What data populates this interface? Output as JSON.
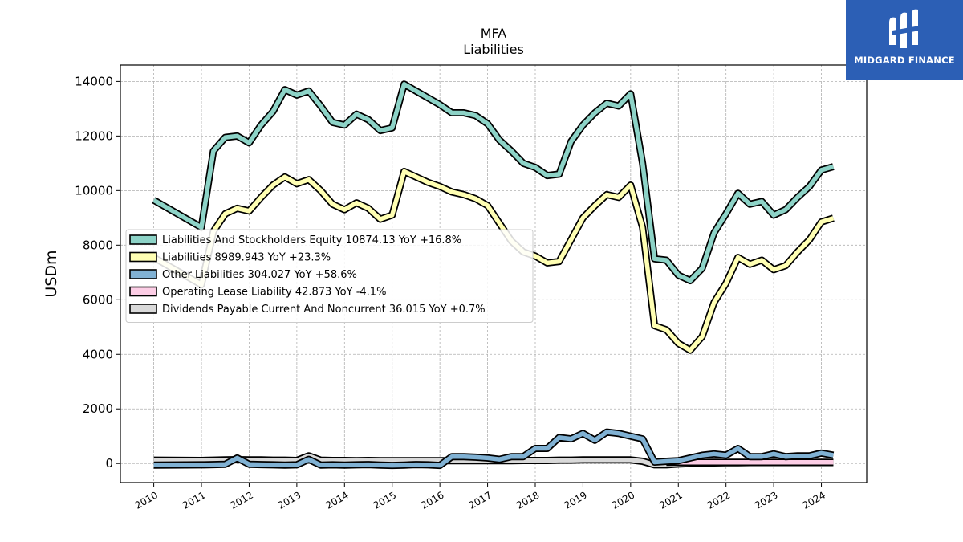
{
  "brand": {
    "name": "MIDGARD FINANCE",
    "logo_icon": "midgard-logo-icon",
    "color": "#2c5fb5"
  },
  "chart_data": {
    "type": "line",
    "title": "MFA",
    "subtitle": "Liabilities",
    "ylabel": "USDm",
    "xlabel": "",
    "ylim": [
      -700,
      14600
    ],
    "xlim": [
      2009.3,
      2024.95
    ],
    "yticks": [
      0,
      2000,
      4000,
      6000,
      8000,
      10000,
      12000,
      14000
    ],
    "xticks": [
      2010,
      2011,
      2012,
      2013,
      2014,
      2015,
      2016,
      2017,
      2018,
      2019,
      2020,
      2021,
      2022,
      2023,
      2024
    ],
    "grid": true,
    "legend_position": "center-left",
    "x": [
      2010.0,
      2011.0,
      2011.25,
      2011.5,
      2011.75,
      2012.0,
      2012.25,
      2012.5,
      2012.75,
      2013.0,
      2013.25,
      2013.5,
      2013.75,
      2014.0,
      2014.25,
      2014.5,
      2014.75,
      2015.0,
      2015.25,
      2015.5,
      2015.75,
      2016.0,
      2016.25,
      2016.5,
      2016.75,
      2017.0,
      2017.25,
      2017.5,
      2017.75,
      2018.0,
      2018.25,
      2018.5,
      2018.75,
      2019.0,
      2019.25,
      2019.5,
      2019.75,
      2020.0,
      2020.25,
      2020.5,
      2020.75,
      2021.0,
      2021.25,
      2021.5,
      2021.75,
      2022.0,
      2022.25,
      2022.5,
      2022.75,
      2023.0,
      2023.25,
      2023.5,
      2023.75,
      2024.0,
      2024.25
    ],
    "series": [
      {
        "name": "Liabilities And Stockholders Equity",
        "value_label": "10874.13",
        "yoy_label": "YoY +16.8%",
        "color": "#8dd3c7",
        "values": [
          9650,
          8650,
          11450,
          11950,
          12000,
          11750,
          12400,
          12900,
          13700,
          13500,
          13650,
          13100,
          12500,
          12400,
          12800,
          12600,
          12200,
          12300,
          13900,
          13650,
          13400,
          13150,
          12850,
          12850,
          12750,
          12450,
          11850,
          11450,
          11000,
          10850,
          10550,
          10600,
          11800,
          12400,
          12850,
          13200,
          13100,
          13550,
          11000,
          7500,
          7450,
          6900,
          6700,
          7150,
          8450,
          9150,
          9900,
          9500,
          9600,
          9100,
          9300,
          9750,
          10150,
          10750,
          10874
        ]
      },
      {
        "name": "Liabilities",
        "value_label": "8989.943",
        "yoy_label": "YoY +23.3%",
        "color": "#ffffb3",
        "values": [
          7550,
          6550,
          8500,
          9150,
          9350,
          9250,
          9750,
          10200,
          10500,
          10250,
          10400,
          10000,
          9500,
          9300,
          9550,
          9350,
          8950,
          9100,
          10700,
          10500,
          10300,
          10150,
          9950,
          9850,
          9700,
          9450,
          8800,
          8150,
          7750,
          7600,
          7350,
          7400,
          8200,
          9000,
          9450,
          9850,
          9750,
          10200,
          8650,
          5050,
          4900,
          4400,
          4150,
          4650,
          5900,
          6600,
          7550,
          7300,
          7450,
          7100,
          7250,
          7750,
          8200,
          8850,
          8990
        ]
      },
      {
        "name": "Other Liabilities",
        "value_label": "304.027",
        "yoy_label": "YoY +58.6%",
        "color": "#80b1d3",
        "values": [
          -60,
          -50,
          -40,
          -30,
          200,
          -30,
          -40,
          -50,
          -60,
          -50,
          150,
          -60,
          -50,
          -60,
          -50,
          -40,
          -60,
          -70,
          -60,
          -40,
          -50,
          -70,
          250,
          250,
          230,
          200,
          150,
          250,
          250,
          550,
          550,
          950,
          900,
          1100,
          850,
          1150,
          1100,
          1000,
          900,
          50,
          80,
          100,
          200,
          300,
          350,
          300,
          550,
          250,
          250,
          350,
          250,
          280,
          280,
          380,
          304
        ]
      },
      {
        "name": "Operating Lease Liability",
        "value_label": "42.873",
        "yoy_label": "YoY -4.1%",
        "color": "#fccde5",
        "values": [
          null,
          null,
          null,
          null,
          null,
          null,
          null,
          null,
          null,
          null,
          null,
          null,
          null,
          null,
          null,
          null,
          null,
          null,
          null,
          null,
          null,
          null,
          null,
          null,
          null,
          null,
          null,
          null,
          null,
          null,
          null,
          null,
          null,
          null,
          null,
          null,
          null,
          null,
          null,
          null,
          45,
          45,
          45,
          44,
          44,
          44,
          44,
          44,
          43,
          43,
          43,
          43,
          43,
          43,
          43
        ]
      },
      {
        "name": "Dividends Payable Current And Noncurrent",
        "value_label": "36.015",
        "yoy_label": "YoY +0.7%",
        "color": "#d9d9d9",
        "values": [
          120,
          110,
          120,
          130,
          140,
          130,
          130,
          120,
          120,
          110,
          280,
          120,
          110,
          110,
          100,
          110,
          100,
          100,
          100,
          100,
          100,
          100,
          100,
          100,
          100,
          100,
          100,
          100,
          110,
          110,
          110,
          120,
          120,
          130,
          130,
          130,
          130,
          130,
          80,
          -50,
          -50,
          -20,
          0,
          10,
          20,
          30,
          30,
          35,
          35,
          35,
          35,
          36,
          36,
          36,
          36
        ]
      }
    ]
  }
}
